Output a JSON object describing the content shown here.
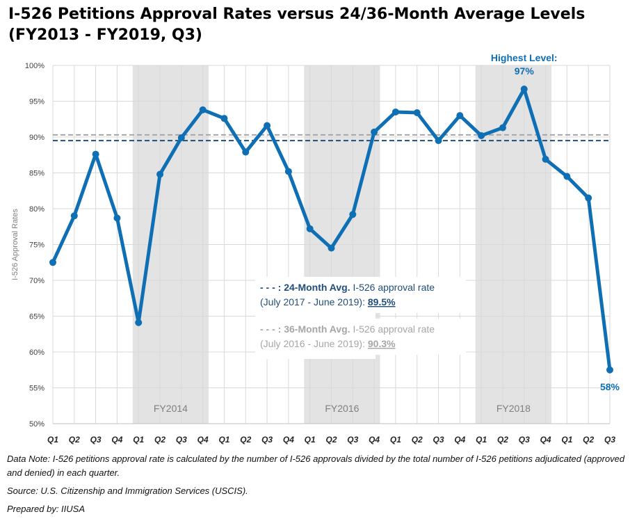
{
  "title_line1": "I-526 Petitions Approval Rates versus 24/36-Month Average Levels",
  "title_line2": "(FY2013 - FY2019, Q3)",
  "chart_data": {
    "type": "line",
    "title": "I-526 Petitions Approval Rates versus 24/36-Month Average Levels (FY2013 - FY2019, Q3)",
    "ylabel": "I-526 Approval Rates",
    "ylim": [
      50,
      100
    ],
    "yticks": [
      50,
      55,
      60,
      65,
      70,
      75,
      80,
      85,
      90,
      95,
      100
    ],
    "ytick_suffix": "%",
    "grid": true,
    "categories": [
      "Q1",
      "Q2",
      "Q3",
      "Q4",
      "Q1",
      "Q2",
      "Q3",
      "Q4",
      "Q1",
      "Q2",
      "Q3",
      "Q4",
      "Q1",
      "Q2",
      "Q3",
      "Q4",
      "Q1",
      "Q2",
      "Q3",
      "Q4",
      "Q1",
      "Q2",
      "Q3",
      "Q4",
      "Q1",
      "Q2",
      "Q3"
    ],
    "series": [
      {
        "values": [
          72.5,
          79.0,
          87.6,
          78.7,
          64.1,
          84.8,
          89.9,
          93.8,
          92.6,
          87.9,
          91.6,
          85.2,
          77.2,
          74.5,
          79.2,
          90.7,
          93.5,
          93.4,
          89.5,
          93.0,
          90.2,
          91.3,
          96.7,
          86.9,
          84.5,
          81.5,
          57.5
        ],
        "color": "#0E6FB5"
      }
    ],
    "reference_lines": [
      {
        "value": 89.5,
        "color": "#1F4E79",
        "style": "dashed"
      },
      {
        "value": 90.3,
        "color": "#A6A6A6",
        "style": "dashed"
      }
    ],
    "shaded_regions": [
      {
        "start_index": 4,
        "end_index": 7,
        "label": "FY2014"
      },
      {
        "start_index": 12,
        "end_index": 15,
        "label": "FY2016"
      },
      {
        "start_index": 20,
        "end_index": 23,
        "label": "FY2018"
      }
    ],
    "annotations": {
      "highest_label": "Highest Level:",
      "highest_value": "97%",
      "last_value": "58%"
    },
    "legend_box": {
      "avg24_dash": "- - - :",
      "avg24_bold": "24-Month Avg.",
      "avg24_text": " I-526 approval rate",
      "avg24_period": "(July 2017 - June 2019): ",
      "avg24_value": "89.5%",
      "avg36_dash": "- - - :",
      "avg36_bold": "36-Month Avg.",
      "avg36_text": " I-526 approval rate",
      "avg36_period": "(July 2016 - June 2019): ",
      "avg36_value": "90.3%"
    },
    "colors": {
      "line": "#0E6FB5",
      "avg24": "#1F4E79",
      "avg36": "#A6A6A6",
      "shade": "#E3E3E3",
      "grid": "#D9D9D9"
    }
  },
  "notes": {
    "data_note": "Data Note: I-526 petitions approval rate is calculated by the number of I-526 approvals divided by the total number of I-526 petitions adjudicated (approved and denied) in each quarter.",
    "source": "Source: U.S. Citizenship and Immigration Services (USCIS).",
    "prepared": "Prepared by: IIUSA"
  }
}
